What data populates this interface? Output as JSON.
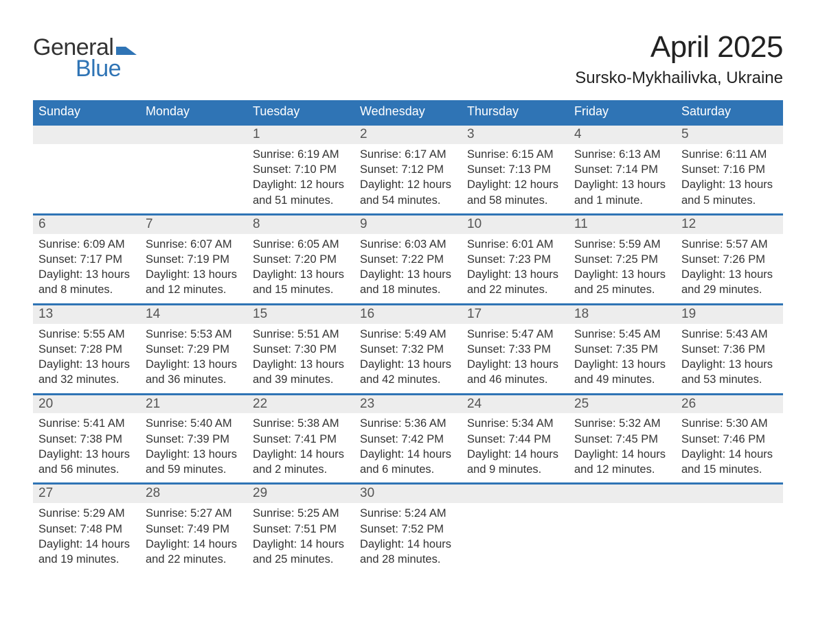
{
  "brand": {
    "word1": "General",
    "word2": "Blue",
    "mark_color": "#2f74b5",
    "word1_color": "#333333",
    "word2_color": "#2f74b5"
  },
  "title": "April 2025",
  "location": "Sursko-Mykhailivka, Ukraine",
  "colors": {
    "header_bg": "#2f74b5",
    "header_text": "#ffffff",
    "daynum_bg": "#ededed",
    "daynum_border": "#2f74b5",
    "body_text": "#333333",
    "page_bg": "#ffffff"
  },
  "day_headers": [
    "Sunday",
    "Monday",
    "Tuesday",
    "Wednesday",
    "Thursday",
    "Friday",
    "Saturday"
  ],
  "weeks": [
    [
      {
        "num": "",
        "lines": []
      },
      {
        "num": "",
        "lines": []
      },
      {
        "num": "1",
        "lines": [
          "Sunrise: 6:19 AM",
          "Sunset: 7:10 PM",
          "Daylight: 12 hours and 51 minutes."
        ]
      },
      {
        "num": "2",
        "lines": [
          "Sunrise: 6:17 AM",
          "Sunset: 7:12 PM",
          "Daylight: 12 hours and 54 minutes."
        ]
      },
      {
        "num": "3",
        "lines": [
          "Sunrise: 6:15 AM",
          "Sunset: 7:13 PM",
          "Daylight: 12 hours and 58 minutes."
        ]
      },
      {
        "num": "4",
        "lines": [
          "Sunrise: 6:13 AM",
          "Sunset: 7:14 PM",
          "Daylight: 13 hours and 1 minute."
        ]
      },
      {
        "num": "5",
        "lines": [
          "Sunrise: 6:11 AM",
          "Sunset: 7:16 PM",
          "Daylight: 13 hours and 5 minutes."
        ]
      }
    ],
    [
      {
        "num": "6",
        "lines": [
          "Sunrise: 6:09 AM",
          "Sunset: 7:17 PM",
          "Daylight: 13 hours and 8 minutes."
        ]
      },
      {
        "num": "7",
        "lines": [
          "Sunrise: 6:07 AM",
          "Sunset: 7:19 PM",
          "Daylight: 13 hours and 12 minutes."
        ]
      },
      {
        "num": "8",
        "lines": [
          "Sunrise: 6:05 AM",
          "Sunset: 7:20 PM",
          "Daylight: 13 hours and 15 minutes."
        ]
      },
      {
        "num": "9",
        "lines": [
          "Sunrise: 6:03 AM",
          "Sunset: 7:22 PM",
          "Daylight: 13 hours and 18 minutes."
        ]
      },
      {
        "num": "10",
        "lines": [
          "Sunrise: 6:01 AM",
          "Sunset: 7:23 PM",
          "Daylight: 13 hours and 22 minutes."
        ]
      },
      {
        "num": "11",
        "lines": [
          "Sunrise: 5:59 AM",
          "Sunset: 7:25 PM",
          "Daylight: 13 hours and 25 minutes."
        ]
      },
      {
        "num": "12",
        "lines": [
          "Sunrise: 5:57 AM",
          "Sunset: 7:26 PM",
          "Daylight: 13 hours and 29 minutes."
        ]
      }
    ],
    [
      {
        "num": "13",
        "lines": [
          "Sunrise: 5:55 AM",
          "Sunset: 7:28 PM",
          "Daylight: 13 hours and 32 minutes."
        ]
      },
      {
        "num": "14",
        "lines": [
          "Sunrise: 5:53 AM",
          "Sunset: 7:29 PM",
          "Daylight: 13 hours and 36 minutes."
        ]
      },
      {
        "num": "15",
        "lines": [
          "Sunrise: 5:51 AM",
          "Sunset: 7:30 PM",
          "Daylight: 13 hours and 39 minutes."
        ]
      },
      {
        "num": "16",
        "lines": [
          "Sunrise: 5:49 AM",
          "Sunset: 7:32 PM",
          "Daylight: 13 hours and 42 minutes."
        ]
      },
      {
        "num": "17",
        "lines": [
          "Sunrise: 5:47 AM",
          "Sunset: 7:33 PM",
          "Daylight: 13 hours and 46 minutes."
        ]
      },
      {
        "num": "18",
        "lines": [
          "Sunrise: 5:45 AM",
          "Sunset: 7:35 PM",
          "Daylight: 13 hours and 49 minutes."
        ]
      },
      {
        "num": "19",
        "lines": [
          "Sunrise: 5:43 AM",
          "Sunset: 7:36 PM",
          "Daylight: 13 hours and 53 minutes."
        ]
      }
    ],
    [
      {
        "num": "20",
        "lines": [
          "Sunrise: 5:41 AM",
          "Sunset: 7:38 PM",
          "Daylight: 13 hours and 56 minutes."
        ]
      },
      {
        "num": "21",
        "lines": [
          "Sunrise: 5:40 AM",
          "Sunset: 7:39 PM",
          "Daylight: 13 hours and 59 minutes."
        ]
      },
      {
        "num": "22",
        "lines": [
          "Sunrise: 5:38 AM",
          "Sunset: 7:41 PM",
          "Daylight: 14 hours and 2 minutes."
        ]
      },
      {
        "num": "23",
        "lines": [
          "Sunrise: 5:36 AM",
          "Sunset: 7:42 PM",
          "Daylight: 14 hours and 6 minutes."
        ]
      },
      {
        "num": "24",
        "lines": [
          "Sunrise: 5:34 AM",
          "Sunset: 7:44 PM",
          "Daylight: 14 hours and 9 minutes."
        ]
      },
      {
        "num": "25",
        "lines": [
          "Sunrise: 5:32 AM",
          "Sunset: 7:45 PM",
          "Daylight: 14 hours and 12 minutes."
        ]
      },
      {
        "num": "26",
        "lines": [
          "Sunrise: 5:30 AM",
          "Sunset: 7:46 PM",
          "Daylight: 14 hours and 15 minutes."
        ]
      }
    ],
    [
      {
        "num": "27",
        "lines": [
          "Sunrise: 5:29 AM",
          "Sunset: 7:48 PM",
          "Daylight: 14 hours and 19 minutes."
        ]
      },
      {
        "num": "28",
        "lines": [
          "Sunrise: 5:27 AM",
          "Sunset: 7:49 PM",
          "Daylight: 14 hours and 22 minutes."
        ]
      },
      {
        "num": "29",
        "lines": [
          "Sunrise: 5:25 AM",
          "Sunset: 7:51 PM",
          "Daylight: 14 hours and 25 minutes."
        ]
      },
      {
        "num": "30",
        "lines": [
          "Sunrise: 5:24 AM",
          "Sunset: 7:52 PM",
          "Daylight: 14 hours and 28 minutes."
        ]
      },
      {
        "num": "",
        "lines": []
      },
      {
        "num": "",
        "lines": []
      },
      {
        "num": "",
        "lines": []
      }
    ]
  ]
}
